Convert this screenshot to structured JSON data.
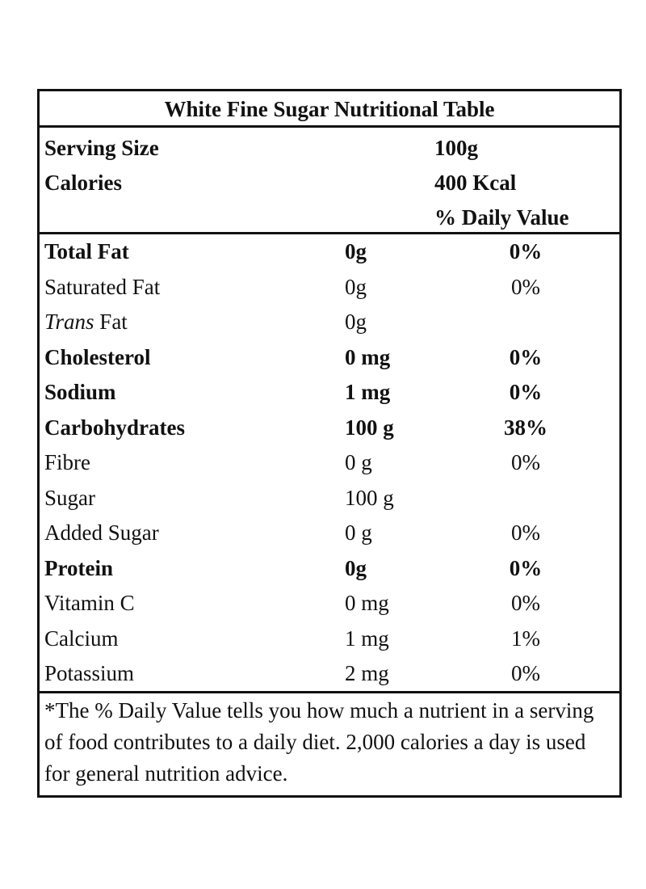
{
  "title": "White Fine Sugar Nutritional Table",
  "header": {
    "serving_label": "Serving Size",
    "serving_value": "100g",
    "calories_label": "Calories",
    "calories_value": "400 Kcal",
    "dv_label": "% Daily Value"
  },
  "rows": [
    {
      "name": "Total Fat",
      "amount": "0g",
      "dv": "0%",
      "bold": true
    },
    {
      "name": "Saturated Fat",
      "amount": "0g",
      "dv": "0%",
      "bold": false
    },
    {
      "name_italic": "Trans",
      "name": " Fat",
      "amount": "0g",
      "dv": "",
      "bold": false
    },
    {
      "name": "Cholesterol",
      "amount": "0 mg",
      "dv": "0%",
      "bold": true
    },
    {
      "name": "Sodium",
      "amount": "1 mg",
      "dv": "0%",
      "bold": true
    },
    {
      "name": "Carbohydrates",
      "amount": "100 g",
      "dv": "38%",
      "bold": true
    },
    {
      "name": "Fibre",
      "amount": "0 g",
      "dv": "0%",
      "bold": false
    },
    {
      "name": "Sugar",
      "amount": "100 g",
      "dv": "",
      "bold": false
    },
    {
      "name": "Added Sugar",
      "amount": "0 g",
      "dv": "0%",
      "bold": false
    },
    {
      "name": "Protein",
      "amount": "0g",
      "dv": "0%",
      "bold": true
    },
    {
      "name": "Vitamin C",
      "amount": "0 mg",
      "dv": "0%",
      "bold": false
    },
    {
      "name": "Calcium",
      "amount": "1 mg",
      "dv": "1%",
      "bold": false
    },
    {
      "name": "Potassium",
      "amount": "2 mg",
      "dv": "0%",
      "bold": false
    }
  ],
  "footnote": "*The % Daily Value tells you how much a nutrient in a serving of food contributes to a daily diet. 2,000 calories a day is used for general nutrition advice."
}
